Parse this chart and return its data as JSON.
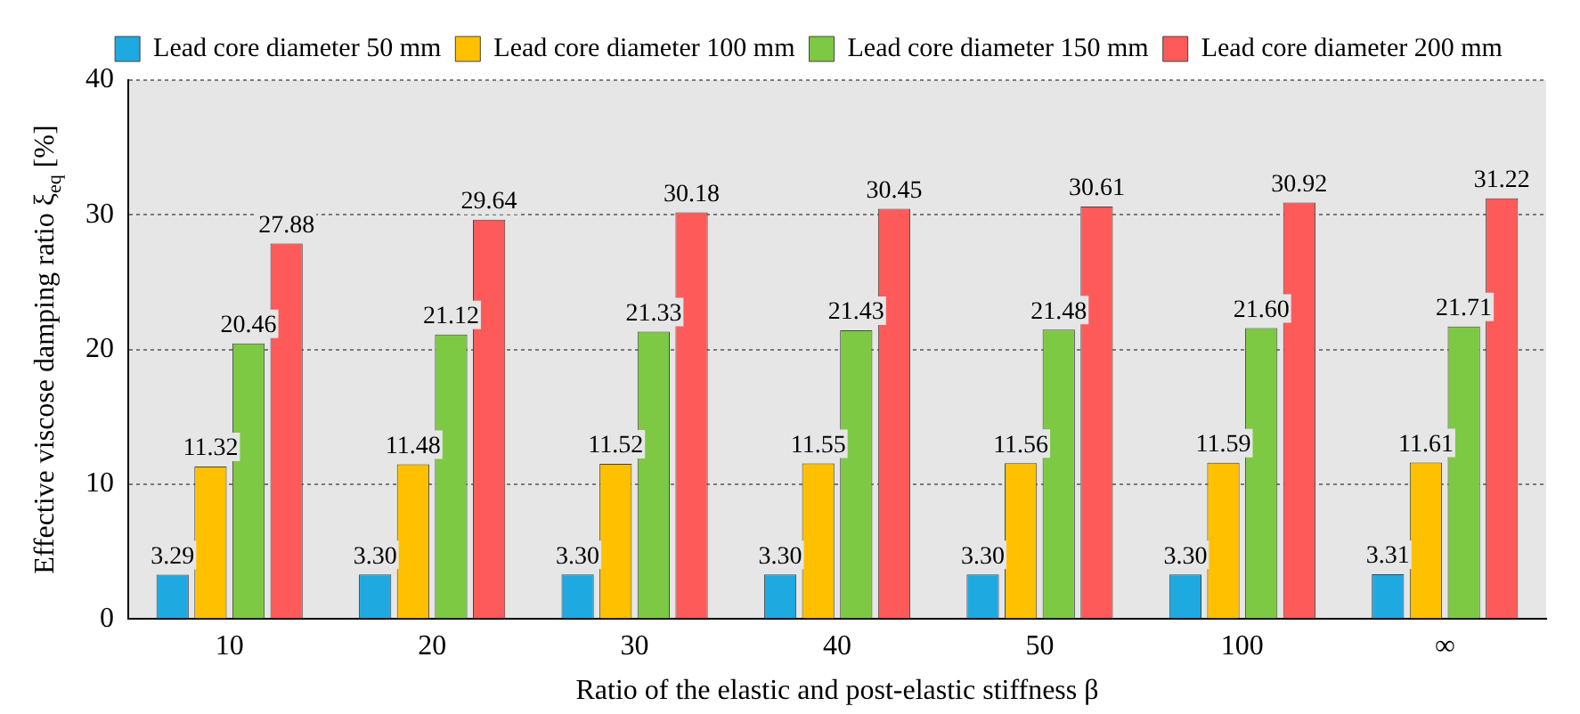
{
  "chart_data": {
    "type": "bar",
    "xlabel": "Ratio of the elastic and post-elastic stiffness β",
    "ylabel": "Effective viscose damping ratio ξ$_{eq}$ [%]",
    "categories": [
      "10",
      "20",
      "30",
      "40",
      "50",
      "100",
      "∞"
    ],
    "series": [
      {
        "name": "Lead core diameter 50 mm",
        "color": "#1fa9e1",
        "values": [
          3.29,
          3.3,
          3.3,
          3.3,
          3.3,
          3.3,
          3.31
        ],
        "value_labels": [
          "3.29",
          "3.30",
          "3.30",
          "3.30",
          "3.30",
          "3.30",
          "3.31"
        ]
      },
      {
        "name": "Lead core diameter 100 mm",
        "color": "#ffc000",
        "values": [
          11.32,
          11.48,
          11.52,
          11.55,
          11.56,
          11.59,
          11.61
        ],
        "value_labels": [
          "11.32",
          "11.48",
          "11.52",
          "11.55",
          "11.56",
          "11.59",
          "11.61"
        ]
      },
      {
        "name": "Lead core diameter 150 mm",
        "color": "#7dc943",
        "values": [
          20.46,
          21.12,
          21.33,
          21.43,
          21.48,
          21.6,
          21.71
        ],
        "value_labels": [
          "20.46",
          "21.12",
          "21.33",
          "21.43",
          "21.48",
          "21.60",
          "21.71"
        ]
      },
      {
        "name": "Lead core diameter 200 mm",
        "color": "#ff5a5a",
        "values": [
          27.88,
          29.64,
          30.18,
          30.45,
          30.61,
          30.92,
          31.22
        ],
        "value_labels": [
          "27.88",
          "29.64",
          "30.18",
          "30.45",
          "30.61",
          "30.92",
          "31.22"
        ]
      }
    ],
    "ylim": [
      0,
      40
    ],
    "yticks": [
      0,
      10,
      20,
      30,
      40
    ],
    "grid": "y",
    "legend": "top"
  }
}
